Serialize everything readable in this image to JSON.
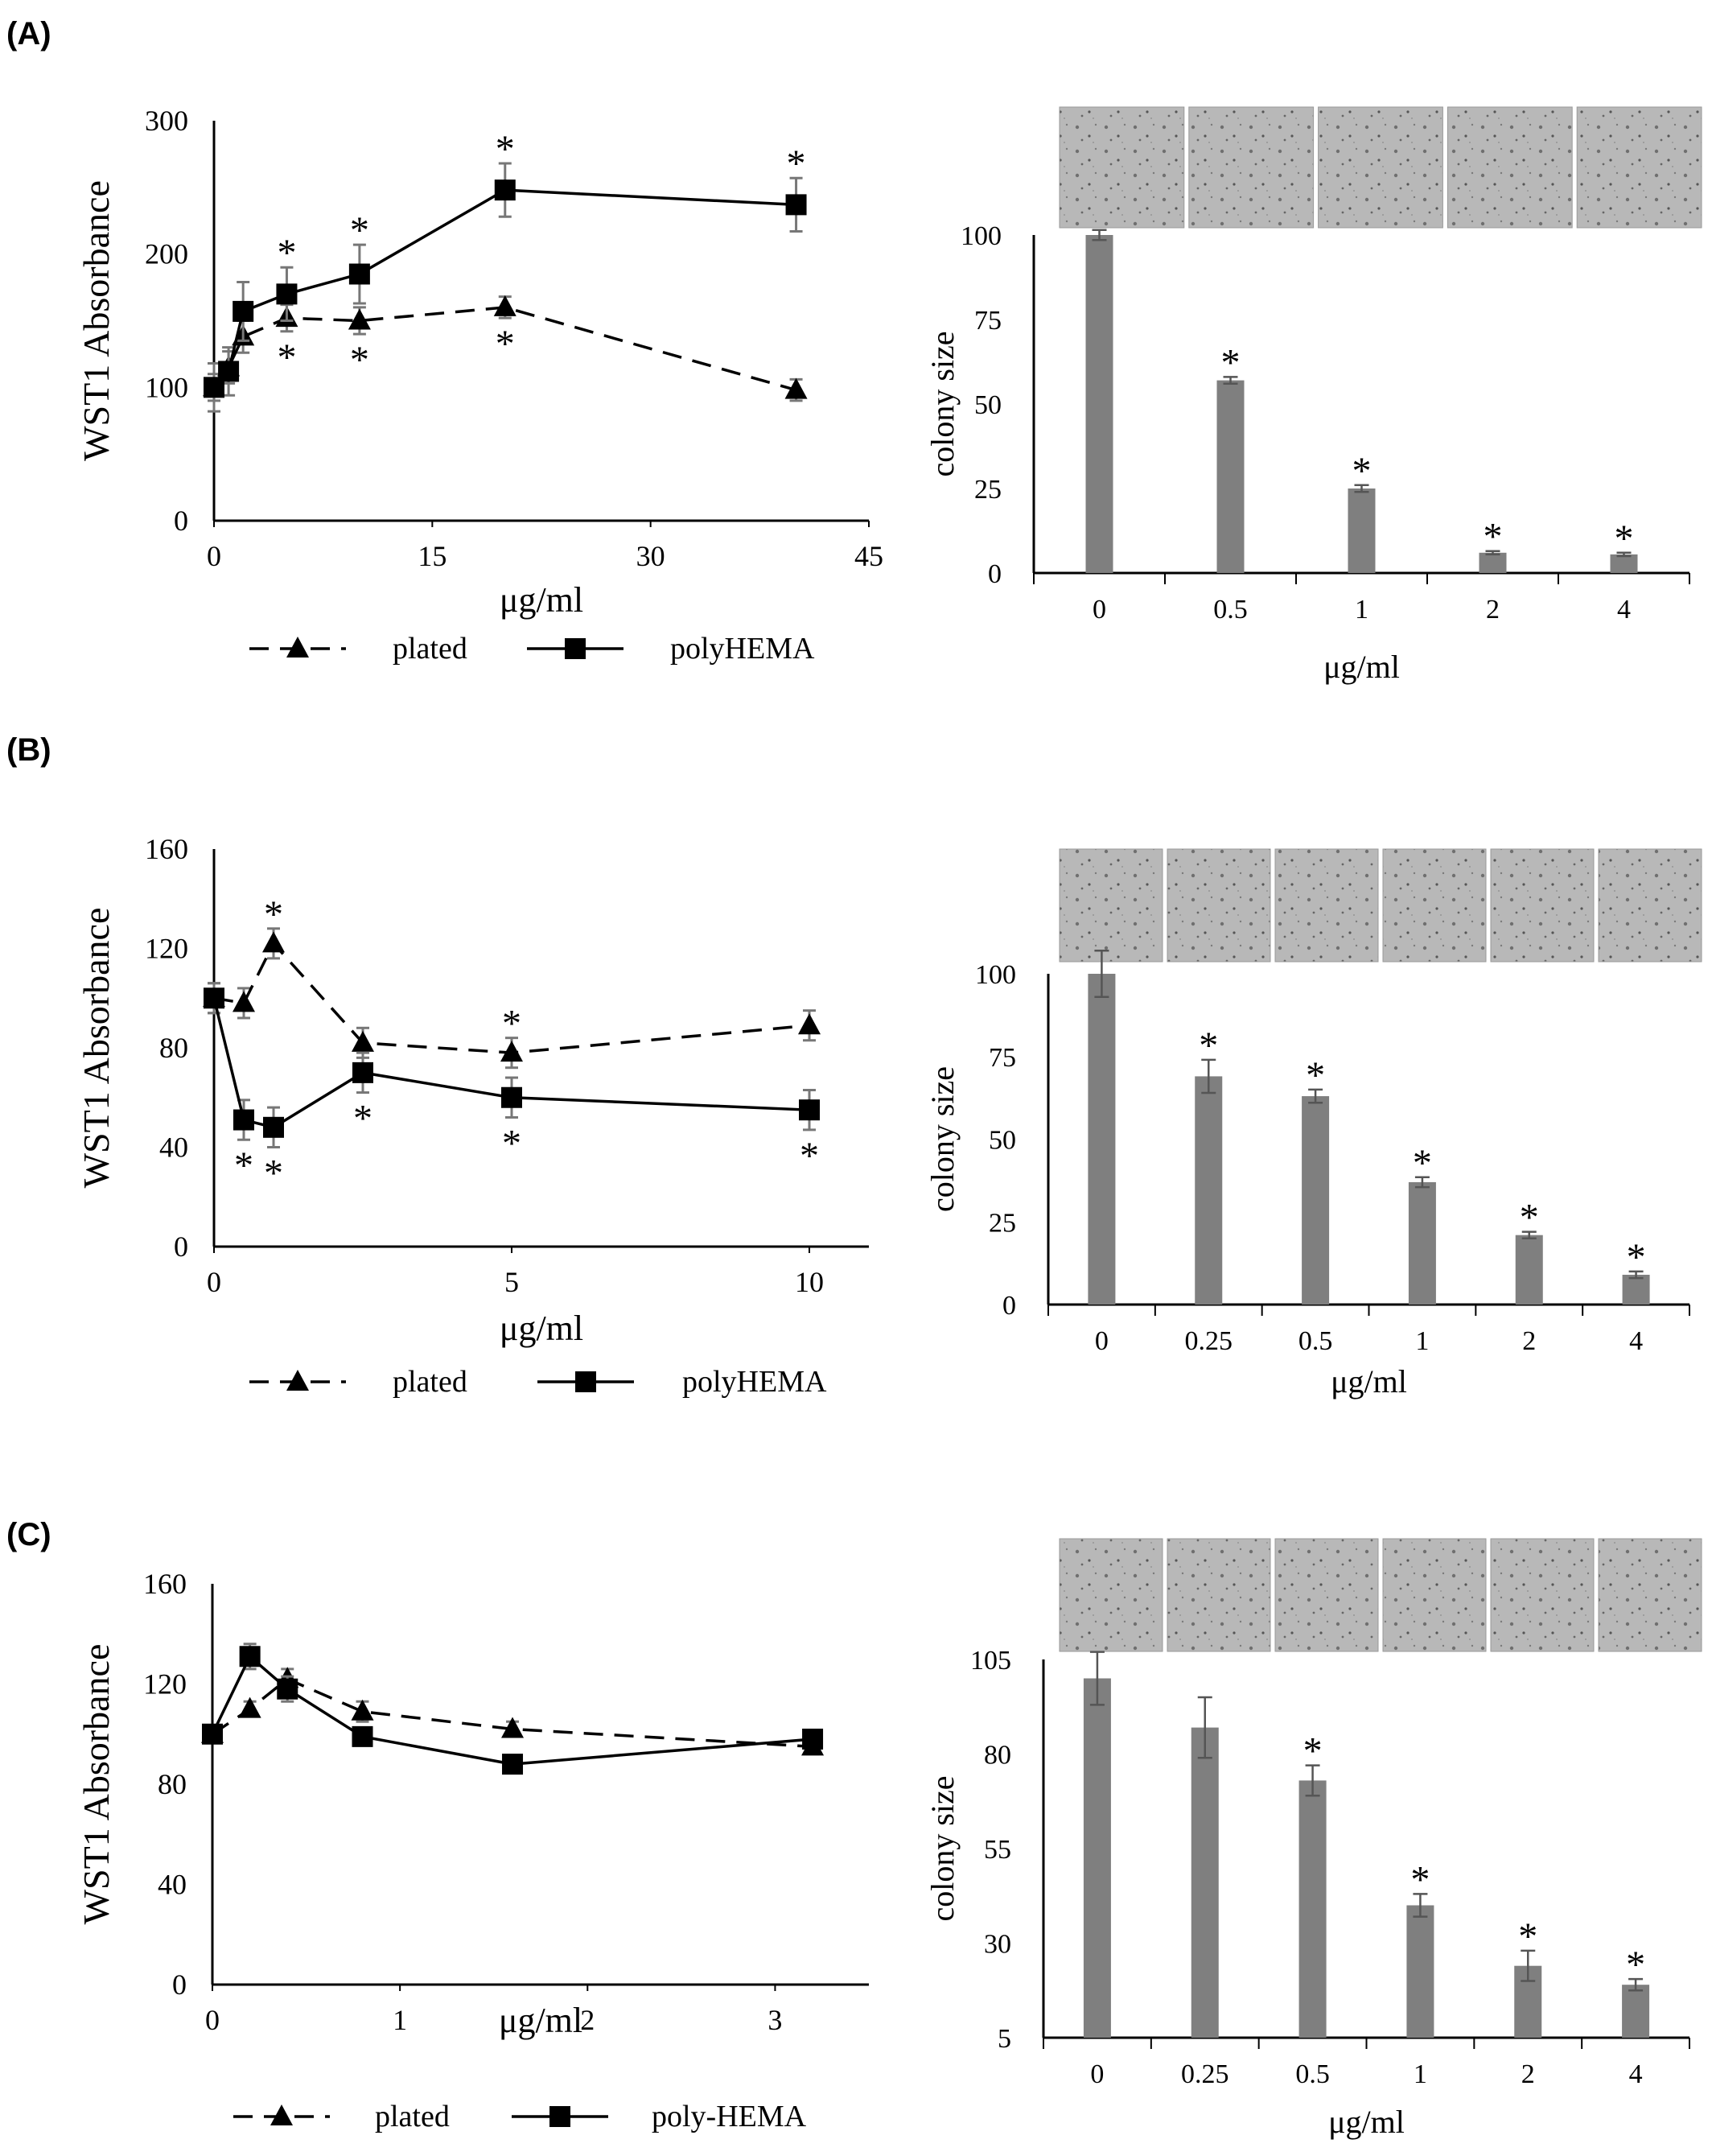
{
  "panels": [
    {
      "label": "(A)",
      "line": {
        "type": "line",
        "ylabel": "WST1 Absorbance",
        "xlabel": "μg/ml",
        "xlim": [
          0,
          45
        ],
        "ylim": [
          0,
          300
        ],
        "xticks": [
          0,
          15,
          30,
          45
        ],
        "yticks": [
          0,
          100,
          200,
          300
        ],
        "legend": [
          "plated",
          "polyHEMA"
        ],
        "series": [
          {
            "name": "plated",
            "style": "dashed",
            "marker": "triangle",
            "x": [
              0,
              1,
              2,
              5,
              10,
              20,
              40
            ],
            "y": [
              100,
              115,
              138,
              152,
              150,
              160,
              98
            ],
            "err": [
              10,
              12,
              12,
              10,
              10,
              8,
              8
            ],
            "sig": [
              false,
              false,
              false,
              true,
              true,
              true,
              false
            ],
            "sig_pos": "below"
          },
          {
            "name": "polyHEMA",
            "style": "solid",
            "marker": "square",
            "x": [
              0,
              1,
              2,
              5,
              10,
              20,
              40
            ],
            "y": [
              100,
              112,
              157,
              170,
              185,
              248,
              237
            ],
            "err": [
              18,
              18,
              22,
              20,
              22,
              20,
              20
            ],
            "sig": [
              false,
              false,
              false,
              true,
              true,
              true,
              true
            ],
            "sig_pos": "above"
          }
        ]
      },
      "bar": {
        "type": "bar",
        "ylabel": "colony size",
        "xlabel": "μg/ml",
        "ylim": [
          0,
          100
        ],
        "yticks": [
          0,
          25,
          50,
          75,
          100
        ],
        "categories": [
          "0",
          "0.5",
          "1",
          "2",
          "4"
        ],
        "values": [
          100,
          57,
          25,
          6,
          5.5
        ],
        "err": [
          1.5,
          1,
          1,
          0.5,
          0.5
        ],
        "sig": [
          false,
          true,
          true,
          true,
          true
        ]
      },
      "images": 5
    },
    {
      "label": "(B)",
      "line": {
        "type": "line",
        "ylabel": "WST1 Absorbance",
        "xlabel": "μg/ml",
        "xlim": [
          0,
          11
        ],
        "ylim": [
          0,
          160
        ],
        "xticks": [
          0,
          5,
          10
        ],
        "yticks": [
          0,
          40,
          80,
          120,
          160
        ],
        "legend": [
          "plated",
          "polyHEMA"
        ],
        "series": [
          {
            "name": "plated",
            "style": "dashed",
            "marker": "triangle",
            "x": [
              0,
              0.5,
              1,
              2.5,
              5,
              10
            ],
            "y": [
              100,
              98,
              122,
              82,
              78,
              89
            ],
            "err": [
              6,
              6,
              6,
              6,
              6,
              6
            ],
            "sig": [
              false,
              false,
              true,
              false,
              true,
              false
            ],
            "sig_pos": "above"
          },
          {
            "name": "polyHEMA",
            "style": "solid",
            "marker": "square",
            "x": [
              0,
              0.5,
              1,
              2.5,
              5,
              10
            ],
            "y": [
              100,
              51,
              48,
              70,
              60,
              55
            ],
            "err": [
              6,
              8,
              8,
              8,
              8,
              8
            ],
            "sig": [
              false,
              true,
              true,
              true,
              true,
              true
            ],
            "sig_pos": "below"
          }
        ]
      },
      "bar": {
        "type": "bar",
        "ylabel": "colony size",
        "xlabel": "μg/ml",
        "ylim": [
          0,
          100
        ],
        "yticks": [
          0,
          25,
          50,
          75,
          100
        ],
        "categories": [
          "0",
          "0.25",
          "0.5",
          "1",
          "2",
          "4"
        ],
        "values": [
          100,
          69,
          63,
          37,
          21,
          9
        ],
        "err": [
          7,
          5,
          2,
          1.5,
          1,
          1
        ],
        "sig": [
          false,
          true,
          true,
          true,
          true,
          true
        ]
      },
      "images": 6
    },
    {
      "label": "(C)",
      "line": {
        "type": "line",
        "ylabel": "WST1 Absorbance",
        "xlabel": "μg/ml",
        "xlim": [
          0,
          3.5
        ],
        "ylim": [
          0,
          160
        ],
        "xticks": [
          0,
          1,
          2,
          3
        ],
        "yticks": [
          0,
          40,
          80,
          120,
          160
        ],
        "legend": [
          "plated",
          "poly-HEMA"
        ],
        "series": [
          {
            "name": "plated",
            "style": "dashed",
            "marker": "triangle",
            "x": [
              0,
              0.2,
              0.4,
              0.8,
              1.6,
              3.2
            ],
            "y": [
              100,
              110,
              122,
              109,
              102,
              95
            ],
            "err": [
              3,
              3,
              4,
              4,
              3,
              3
            ],
            "sig": [
              false,
              false,
              false,
              false,
              false,
              false
            ],
            "sig_pos": "above"
          },
          {
            "name": "poly-HEMA",
            "style": "solid",
            "marker": "square",
            "x": [
              0,
              0.2,
              0.4,
              0.8,
              1.6,
              3.2
            ],
            "y": [
              100,
              131,
              118,
              99,
              88,
              98
            ],
            "err": [
              3,
              5,
              5,
              3,
              3,
              3
            ],
            "sig": [
              false,
              false,
              false,
              false,
              false,
              false
            ],
            "sig_pos": "below"
          }
        ]
      },
      "bar": {
        "type": "bar",
        "ylabel": "colony size",
        "xlabel": "μg/ml",
        "ylim": [
          5,
          105
        ],
        "yticks": [
          5,
          30,
          55,
          80,
          105
        ],
        "categories": [
          "0",
          "0.25",
          "0.5",
          "1",
          "2",
          "4"
        ],
        "values": [
          100,
          87,
          73,
          40,
          24,
          19
        ],
        "err": [
          7,
          8,
          4,
          3,
          4,
          1.5
        ],
        "sig": [
          false,
          false,
          true,
          true,
          true,
          true
        ]
      },
      "images": 6
    }
  ]
}
